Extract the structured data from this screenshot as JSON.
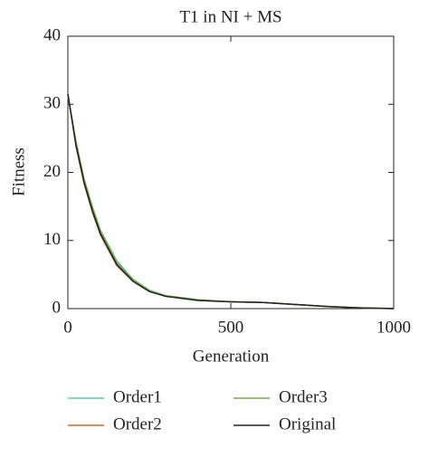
{
  "chart_data": {
    "type": "line",
    "title": "T1 in NI + MS",
    "x_label": "Generation",
    "y_label": "Fitness",
    "x": [
      0,
      25,
      50,
      75,
      100,
      150,
      200,
      250,
      300,
      400,
      500,
      600,
      700,
      800,
      900,
      1000
    ],
    "series": [
      {
        "name": "Order1",
        "color": "#5bbfd0",
        "values": [
          31.3,
          24.2,
          18.8,
          14.7,
          11.2,
          6.7,
          4.1,
          2.6,
          1.9,
          1.3,
          1.0,
          0.9,
          0.6,
          0.3,
          0.1,
          0
        ]
      },
      {
        "name": "Order2",
        "color": "#d2622d",
        "values": [
          31.6,
          23.8,
          18.3,
          14.2,
          10.8,
          6.3,
          4.0,
          2.6,
          1.8,
          1.2,
          1.0,
          0.9,
          0.6,
          0.3,
          0.1,
          0
        ]
      },
      {
        "name": "Order3",
        "color": "#6ab04c",
        "values": [
          31.4,
          24.5,
          19.0,
          15.0,
          11.5,
          7.0,
          4.3,
          2.7,
          1.9,
          1.3,
          1.0,
          0.9,
          0.6,
          0.3,
          0.1,
          0
        ]
      },
      {
        "name": "Original",
        "color": "#222222",
        "values": [
          31.5,
          24.0,
          18.5,
          14.4,
          11.0,
          6.5,
          4.0,
          2.5,
          1.8,
          1.2,
          1.0,
          0.9,
          0.6,
          0.3,
          0.1,
          0
        ]
      }
    ],
    "xlim": [
      0,
      1000
    ],
    "xticks": [
      0,
      500,
      1000
    ],
    "ylim": [
      0,
      40
    ],
    "yticks": [
      0,
      10,
      20,
      30,
      40
    ],
    "grid": false
  }
}
